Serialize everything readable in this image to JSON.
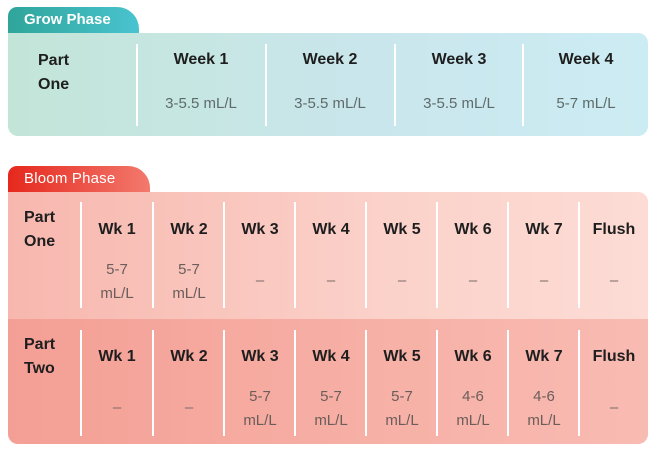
{
  "grow": {
    "tab": "Grow Phase",
    "row_label_1": "Part",
    "row_label_2": "One",
    "weeks": [
      {
        "label": "Week 1",
        "value": "3-5.5 mL/L"
      },
      {
        "label": "Week 2",
        "value": "3-5.5 mL/L"
      },
      {
        "label": "Week 3",
        "value": "3-5.5 mL/L"
      },
      {
        "label": "Week 4",
        "value": "5-7 mL/L"
      }
    ]
  },
  "bloom": {
    "tab": "Bloom Phase",
    "part_one": {
      "label_1": "Part",
      "label_2": "One",
      "cols": [
        {
          "label": "Wk 1",
          "v1": "5-7",
          "v2": "mL/L"
        },
        {
          "label": "Wk 2",
          "v1": "5-7",
          "v2": "mL/L"
        },
        {
          "label": "Wk 3",
          "dash": "–"
        },
        {
          "label": "Wk 4",
          "dash": "–"
        },
        {
          "label": "Wk 5",
          "dash": "–"
        },
        {
          "label": "Wk 6",
          "dash": "–"
        },
        {
          "label": "Wk 7",
          "dash": "–"
        },
        {
          "label": "Flush",
          "dash": "–"
        }
      ]
    },
    "part_two": {
      "label_1": "Part",
      "label_2": "Two",
      "cols": [
        {
          "label": "Wk 1",
          "dash": "–"
        },
        {
          "label": "Wk 2",
          "dash": "–"
        },
        {
          "label": "Wk 3",
          "v1": "5-7",
          "v2": "mL/L"
        },
        {
          "label": "Wk 4",
          "v1": "5-7",
          "v2": "mL/L"
        },
        {
          "label": "Wk 5",
          "v1": "5-7",
          "v2": "mL/L"
        },
        {
          "label": "Wk 6",
          "v1": "4-6",
          "v2": "mL/L"
        },
        {
          "label": "Wk 7",
          "v1": "4-6",
          "v2": "mL/L"
        },
        {
          "label": "Flush",
          "dash": "–"
        }
      ]
    }
  }
}
